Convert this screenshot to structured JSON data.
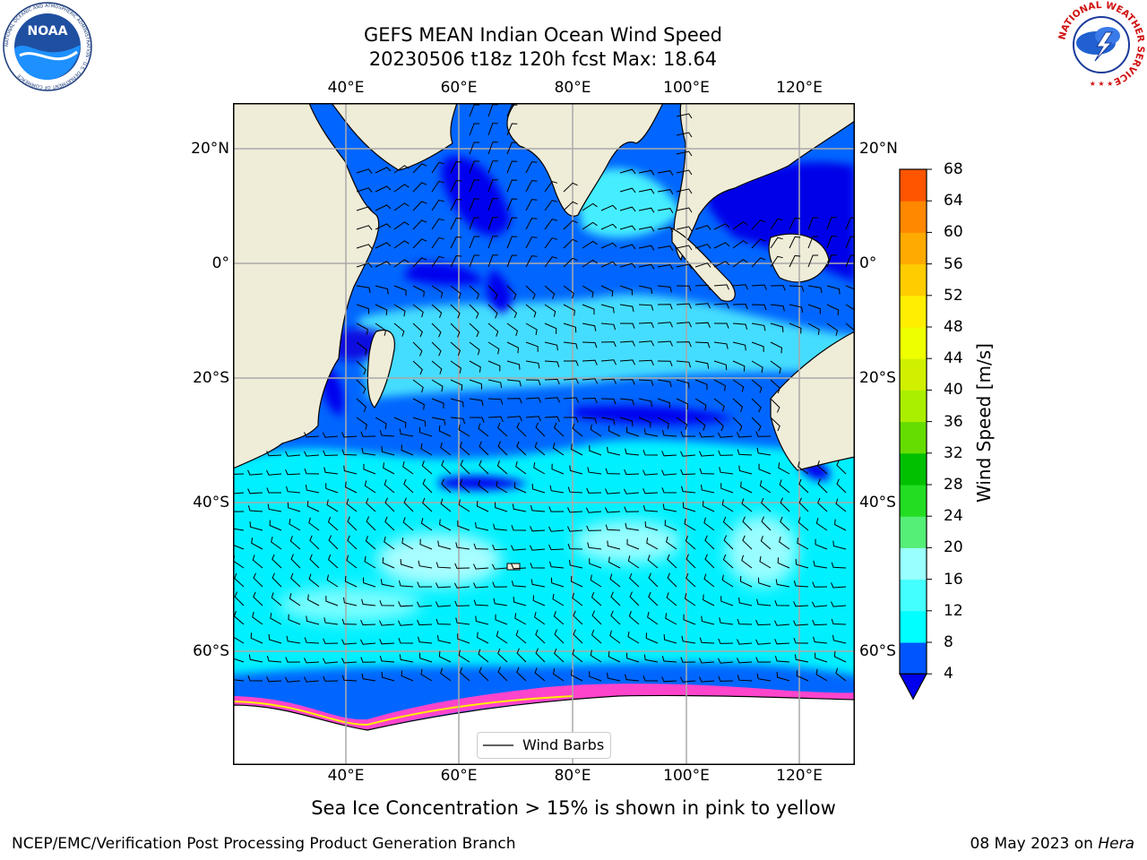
{
  "title_line1": "GEFS MEAN Indian Ocean Wind Speed",
  "title_line2": "20230506 t18z 120h fcst   Max: 18.64",
  "bottom_note": "Sea Ice Concentration > 15% is shown in pink to yellow",
  "credit": "NCEP/EMC/Verification Post Processing Product Generation Branch",
  "date_text": "08 May 2023 on ",
  "date_host": "Hera",
  "legend_label": "Wind Barbs",
  "colorbar": {
    "label": "Wind Speed [m/s]",
    "ticks": [
      "4",
      "8",
      "12",
      "16",
      "20",
      "24",
      "28",
      "32",
      "36",
      "40",
      "44",
      "48",
      "52",
      "56",
      "60",
      "64",
      "68"
    ],
    "colors": [
      "#0055ff",
      "#00ffff",
      "#44ffff",
      "#99ffff",
      "#55ee77",
      "#22dd22",
      "#00c000",
      "#66dd00",
      "#aaee00",
      "#d0f000",
      "#eeff00",
      "#ffee00",
      "#ffcc00",
      "#ffaa00",
      "#ff8800",
      "#ff5500",
      "#ff2200",
      "#ff0000"
    ],
    "under_color": "#0000ee"
  },
  "axes": {
    "lon_labels": [
      "40°E",
      "60°E",
      "80°E",
      "100°E",
      "120°E"
    ],
    "lat_labels_left": [
      "20°N",
      "0°",
      "20°S",
      "40°S",
      "60°S"
    ],
    "lat_labels_right": [
      "20°N",
      "0°",
      "20°S",
      "40°S",
      "60°S"
    ]
  },
  "logos": {
    "noaa_text": "NOAA",
    "noaa_ring": "NATIONAL OCEANIC AND ATMOSPHERIC ADMINISTRATION · U.S. DEPARTMENT OF COMMERCE",
    "nws_ring": "NATIONAL WEATHER SERVICE"
  },
  "colors": {
    "land": "#efecd8",
    "ocean_low": "#0000ee",
    "ocean_mid": "#0055ff",
    "ocean_high": "#00ffff",
    "ice": "#ff44cc"
  }
}
